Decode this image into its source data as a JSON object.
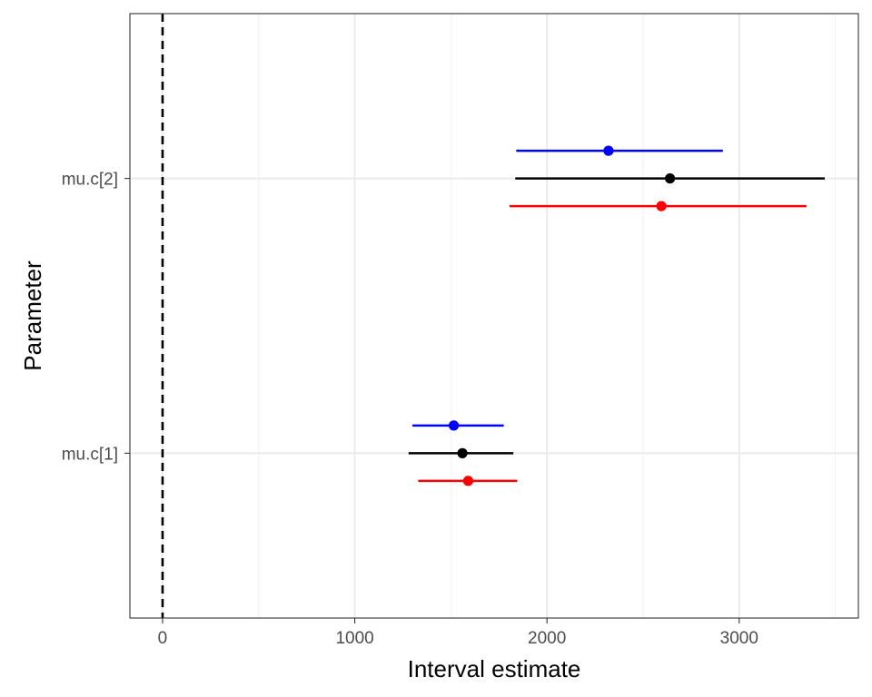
{
  "chart_data": {
    "type": "interval",
    "xlabel": "Interval estimate",
    "ylabel": "Parameter",
    "xlim": [
      -170,
      3620
    ],
    "x_ticks": [
      0,
      1000,
      2000,
      3000
    ],
    "x_tick_labels": [
      "0",
      "1000",
      "2000",
      "3000"
    ],
    "categories": [
      "mu.c[1]",
      "mu.c[2]"
    ],
    "reference_line": {
      "x": 0,
      "style": "dashed",
      "color": "#000000"
    },
    "grid": true,
    "series": [
      {
        "color": "#0000ff",
        "points": [
          {
            "category": "mu.c[1]",
            "estimate": 1515,
            "lower": 1300,
            "upper": 1775
          },
          {
            "category": "mu.c[2]",
            "estimate": 2320,
            "lower": 1840,
            "upper": 2915
          }
        ]
      },
      {
        "color": "#000000",
        "points": [
          {
            "category": "mu.c[1]",
            "estimate": 1560,
            "lower": 1280,
            "upper": 1825
          },
          {
            "category": "mu.c[2]",
            "estimate": 2640,
            "lower": 1835,
            "upper": 3445
          }
        ]
      },
      {
        "color": "#ff0000",
        "points": [
          {
            "category": "mu.c[1]",
            "estimate": 1590,
            "lower": 1330,
            "upper": 1845
          },
          {
            "category": "mu.c[2]",
            "estimate": 2595,
            "lower": 1805,
            "upper": 3350
          }
        ]
      }
    ]
  }
}
